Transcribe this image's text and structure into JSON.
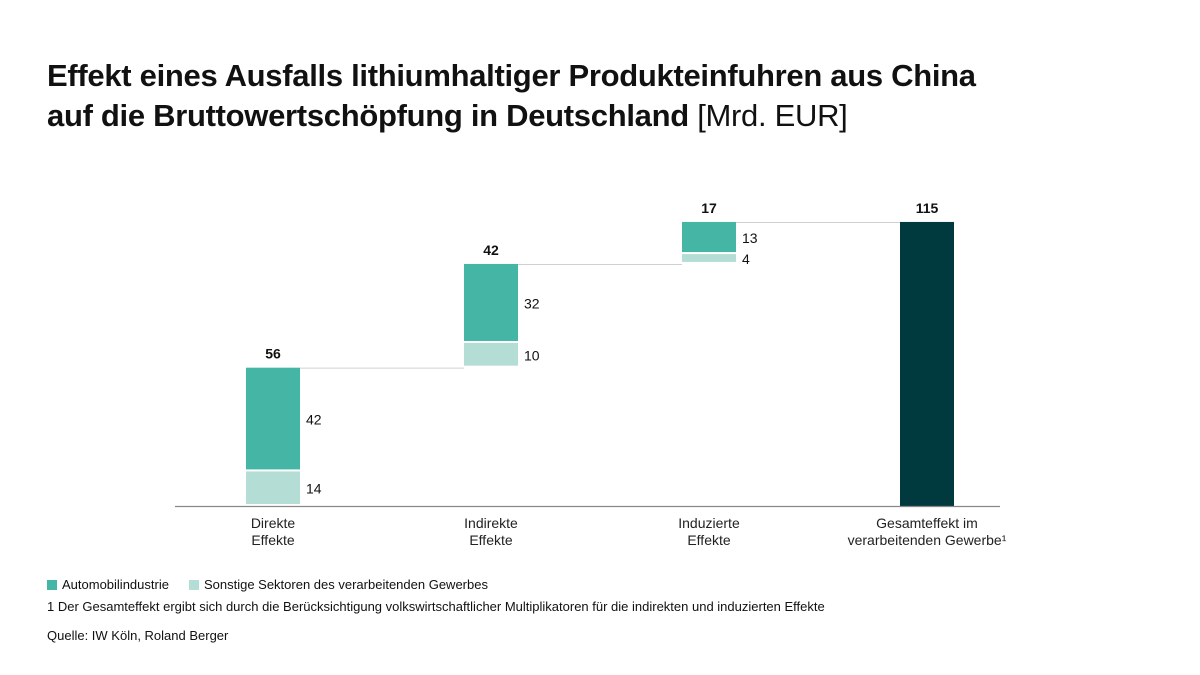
{
  "title": {
    "main_line1": "Effekt eines Ausfalls lithiumhaltiger Produkteinfuhren aus China",
    "main_line2": "auf die Bruttowertschöpfung in Deutschland",
    "unit": "[Mrd. EUR]"
  },
  "chart_data": {
    "type": "waterfall",
    "categories": [
      [
        "Direkte",
        "Effekte"
      ],
      [
        "Indirekte",
        "Effekte"
      ],
      [
        "Induzierte",
        "Effekte"
      ],
      [
        "Gesamteffekt im",
        "verarbeitenden Gewerbe¹"
      ]
    ],
    "series": [
      {
        "name": "Sonstige Sektoren des verarbeitenden Gewerbes",
        "values": [
          14,
          10,
          4,
          null
        ],
        "color": "#b3ddd5"
      },
      {
        "name": "Automobilindustrie",
        "values": [
          42,
          32,
          13,
          null
        ],
        "color": "#45b6a6"
      }
    ],
    "totals": [
      56,
      42,
      17,
      115
    ],
    "total_color": "#003a3f",
    "ylim": [
      0,
      115
    ],
    "grid": false,
    "legend_position": "bottom-left"
  },
  "legend": [
    {
      "label": "Automobilindustrie",
      "color": "#45b6a6"
    },
    {
      "label": "Sonstige Sektoren des verarbeitenden Gewerbes",
      "color": "#b3ddd5"
    }
  ],
  "footnote": "1 Der Gesamteffekt ergibt sich durch die Berücksichtigung volkswirtschaftlicher Multiplikatoren für die indirekten und induzierten Effekte",
  "source": "Quelle: IW Köln, Roland Berger"
}
